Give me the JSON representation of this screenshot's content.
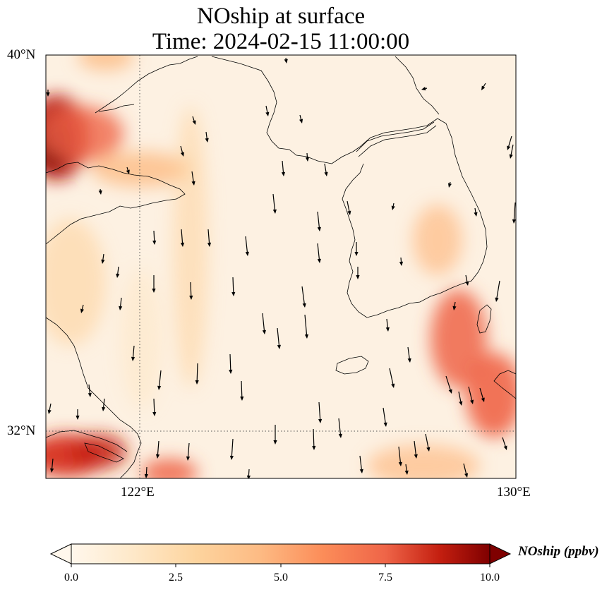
{
  "title": {
    "line1": "NOship at surface",
    "line2": "Time: 2024-02-15 11:00:00"
  },
  "lat_labels": [
    "40°N",
    "32°N"
  ],
  "lon_labels": [
    "122°E",
    "130°E"
  ],
  "gridlines": {
    "lat": [
      32
    ],
    "lon": [
      122
    ],
    "style": "dotted"
  },
  "extent": {
    "lon": [
      120,
      130
    ],
    "lat": [
      31,
      40
    ]
  },
  "colorbar": {
    "label": "NOship (ppbv)",
    "cmap": "OrRd",
    "vmin": 0.0,
    "vmax": 10.0,
    "extend": "both",
    "ticks": [
      "0.0",
      "2.5",
      "5.0",
      "7.5",
      "10.0"
    ]
  },
  "wind_vectors": "arrows pointing predominantly south to south-southeast",
  "high_concentration_regions": [
    "Bohai strait west edge near 38.5°N 120°E",
    "Yangtze estuary near 31.5°N 121°E",
    "Korea Strait near 33°N 129.5°E"
  ]
}
